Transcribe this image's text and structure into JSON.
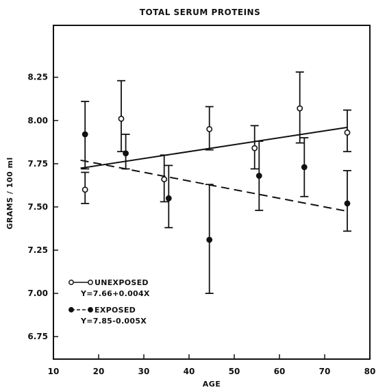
{
  "chart_data": {
    "type": "scatter",
    "title": "TOTAL SERUM PROTEINS",
    "xlabel": "AGE",
    "ylabel": "GRAMS / 100 ml",
    "xlim": [
      10,
      80
    ],
    "ylim": [
      6.62,
      8.55
    ],
    "x_ticks": [
      10,
      20,
      30,
      40,
      50,
      60,
      70,
      80
    ],
    "y_ticks": [
      6.75,
      7.0,
      7.25,
      7.5,
      7.75,
      8.0,
      8.25
    ],
    "y_tick_labels": [
      "6.75",
      "7.00",
      "7.25",
      "7.50",
      "7.75",
      "8.00",
      "8.25"
    ],
    "grid": false,
    "error_bars": true,
    "legend_position": "bottom-left",
    "series": [
      {
        "name": "UNEXPOSED",
        "marker": "open-circle",
        "line_style": "solid",
        "fit_label": "Y=7.66+0.004X",
        "fit": {
          "intercept": 7.66,
          "slope": 0.004,
          "x_range": [
            16,
            75
          ]
        },
        "points": [
          {
            "x": 17,
            "y": 7.6,
            "lo": 7.52,
            "hi": 7.7
          },
          {
            "x": 25,
            "y": 8.01,
            "lo": 7.82,
            "hi": 8.23
          },
          {
            "x": 34.5,
            "y": 7.66,
            "lo": 7.53,
            "hi": 7.8
          },
          {
            "x": 44.5,
            "y": 7.95,
            "lo": 7.83,
            "hi": 8.08
          },
          {
            "x": 54.5,
            "y": 7.84,
            "lo": 7.72,
            "hi": 7.97
          },
          {
            "x": 64.5,
            "y": 8.07,
            "lo": 7.87,
            "hi": 8.28
          },
          {
            "x": 75,
            "y": 7.93,
            "lo": 7.82,
            "hi": 8.06
          }
        ]
      },
      {
        "name": "EXPOSED",
        "marker": "filled-circle",
        "line_style": "dashed",
        "fit_label": "Y=7.85-0.005X",
        "fit": {
          "intercept": 7.85,
          "slope": -0.005,
          "x_range": [
            16,
            75
          ]
        },
        "points": [
          {
            "x": 17,
            "y": 7.92,
            "lo": 7.72,
            "hi": 8.11
          },
          {
            "x": 26,
            "y": 7.81,
            "lo": 7.72,
            "hi": 7.92
          },
          {
            "x": 35.5,
            "y": 7.55,
            "lo": 7.38,
            "hi": 7.74
          },
          {
            "x": 44.5,
            "y": 7.31,
            "lo": 7.0,
            "hi": 7.63
          },
          {
            "x": 55.5,
            "y": 7.68,
            "lo": 7.48,
            "hi": 7.88
          },
          {
            "x": 65.5,
            "y": 7.73,
            "lo": 7.56,
            "hi": 7.9
          },
          {
            "x": 75,
            "y": 7.52,
            "lo": 7.36,
            "hi": 7.71
          }
        ]
      }
    ]
  }
}
